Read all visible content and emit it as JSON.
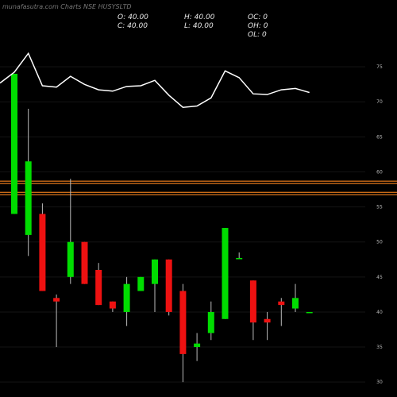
{
  "source_label": "munafasutra.com Charts NSE HUSYSLTD",
  "ohlc": {
    "open": "O: 40.00",
    "high": "H: 40.00",
    "oc": "OC: 0",
    "close": "C: 40.00",
    "low": "L: 40.00",
    "oh": "OH: 0",
    "ol": "OL: 0"
  },
  "colors": {
    "background": "#000000",
    "up": "#00dd00",
    "down": "#ee1111",
    "wick": "#bbbbbb",
    "grid": "#141414",
    "line": "#ffffff",
    "level_line": "#c86a18"
  },
  "chart_data": {
    "type": "candlestick",
    "y_ticks": [
      30,
      35,
      40,
      45,
      50,
      55,
      60,
      65,
      70,
      75
    ],
    "y_range": [
      29,
      80
    ],
    "candles": [
      {
        "o": 54,
        "h": 74,
        "l": 54,
        "c": 74
      },
      {
        "o": 51,
        "h": 69,
        "l": 48,
        "c": 61.5
      },
      {
        "o": 54,
        "h": 55.5,
        "l": 43,
        "c": 43
      },
      {
        "o": 42,
        "h": 42.5,
        "l": 35,
        "c": 41.5
      },
      {
        "o": 45,
        "h": 59,
        "l": 44,
        "c": 50
      },
      {
        "o": 50,
        "h": 50,
        "l": 44,
        "c": 44
      },
      {
        "o": 46,
        "h": 47,
        "l": 41,
        "c": 41
      },
      {
        "o": 41.5,
        "h": 41.5,
        "l": 40,
        "c": 40.5
      },
      {
        "o": 40,
        "h": 45,
        "l": 38,
        "c": 44
      },
      {
        "o": 43,
        "h": 45,
        "l": 43,
        "c": 45
      },
      {
        "o": 44,
        "h": 47.5,
        "l": 40,
        "c": 47.5
      },
      {
        "o": 47.5,
        "h": 47.5,
        "l": 39.5,
        "c": 40
      },
      {
        "o": 43,
        "h": 44,
        "l": 30,
        "c": 34
      },
      {
        "o": 35,
        "h": 37,
        "l": 33,
        "c": 35.5
      },
      {
        "o": 37,
        "h": 41.5,
        "l": 36,
        "c": 40
      },
      {
        "o": 39,
        "h": 52,
        "l": 39,
        "c": 52
      },
      {
        "o": 47.7,
        "h": 48.5,
        "l": 47.7,
        "c": 47.7
      },
      {
        "o": 44.5,
        "h": 44.5,
        "l": 36,
        "c": 38.5
      },
      {
        "o": 39,
        "h": 40,
        "l": 36,
        "c": 38.5
      },
      {
        "o": 41.5,
        "h": 42,
        "l": 38,
        "c": 41
      },
      {
        "o": 40.5,
        "h": 44,
        "l": 40,
        "c": 42
      },
      {
        "o": 40,
        "h": 40,
        "l": 40,
        "c": 40
      }
    ],
    "overlay_line": {
      "y_range": [
        0,
        100
      ],
      "values": [
        70,
        84,
        60,
        59,
        67,
        61,
        57,
        56,
        59.5,
        60,
        64,
        53,
        44,
        45,
        51,
        71,
        66,
        54,
        53.5,
        57,
        58,
        55
      ]
    },
    "horizontal_levels": [
      58.5,
      56.9
    ]
  }
}
